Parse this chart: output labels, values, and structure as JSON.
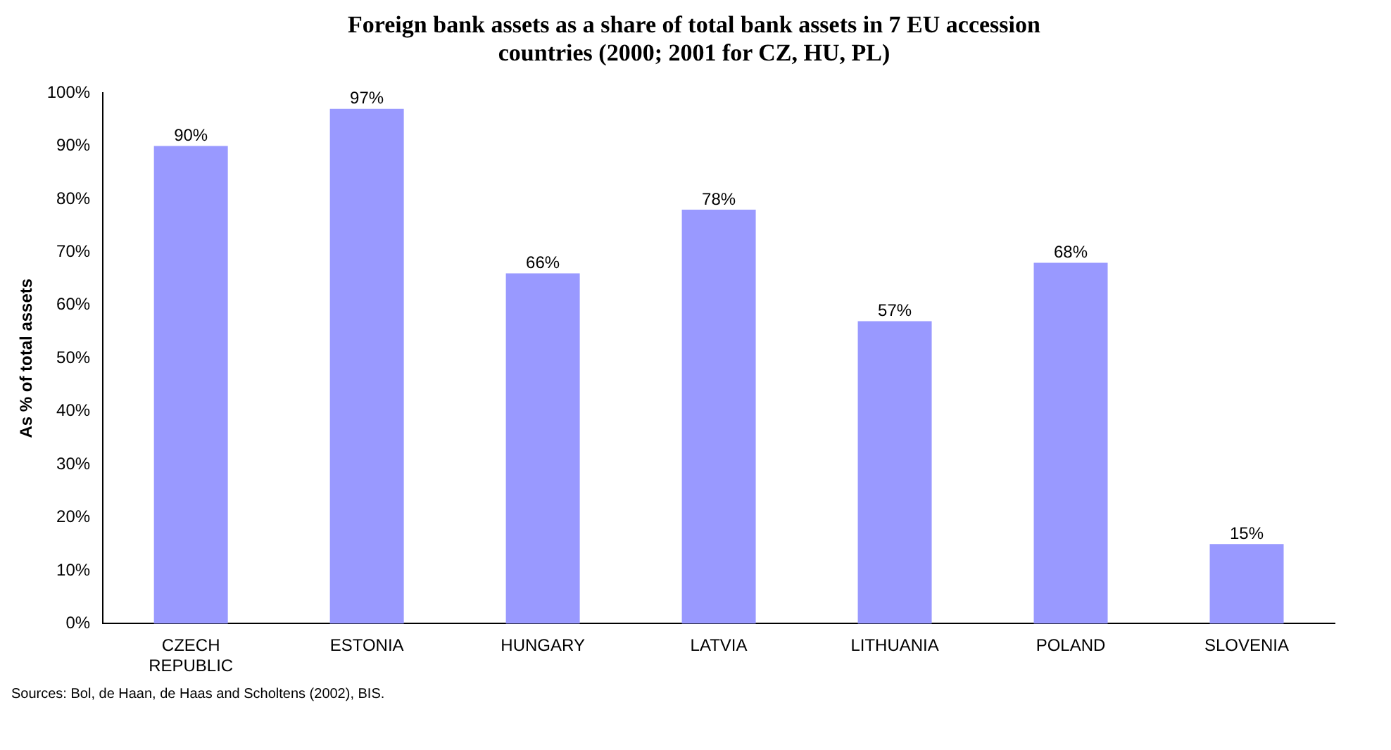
{
  "chart_data": {
    "type": "bar",
    "title": "Foreign bank assets as a share of total bank assets in 7 EU accession countries (2000; 2001 for CZ, HU, PL)",
    "ylabel": "As % of total assets",
    "categories": [
      "CZECH REPUBLIC",
      "ESTONIA",
      "HUNGARY",
      "LATVIA",
      "LITHUANIA",
      "POLAND",
      "SLOVENIA"
    ],
    "values": [
      90,
      97,
      66,
      78,
      57,
      68,
      15
    ],
    "color": "#9999ff",
    "value_labels": [
      "90%",
      "97%",
      "66%",
      "78%",
      "57%",
      "68%",
      "15%"
    ],
    "ylim": [
      0,
      100
    ],
    "yticks": [
      {
        "value": 0,
        "label": "0%"
      },
      {
        "value": 10,
        "label": "10%"
      },
      {
        "value": 20,
        "label": "20%"
      },
      {
        "value": 30,
        "label": "30%"
      },
      {
        "value": 40,
        "label": "40%"
      },
      {
        "value": 50,
        "label": "50%"
      },
      {
        "value": 60,
        "label": "60%"
      },
      {
        "value": 70,
        "label": "70%"
      },
      {
        "value": 80,
        "label": "80%"
      },
      {
        "value": 90,
        "label": "90%"
      },
      {
        "value": 100,
        "label": "100%"
      }
    ],
    "grid": false,
    "legend": false,
    "annotations": [
      "Sources: Bol, de Haan, de Haas and Scholtens (2002), BIS."
    ]
  }
}
